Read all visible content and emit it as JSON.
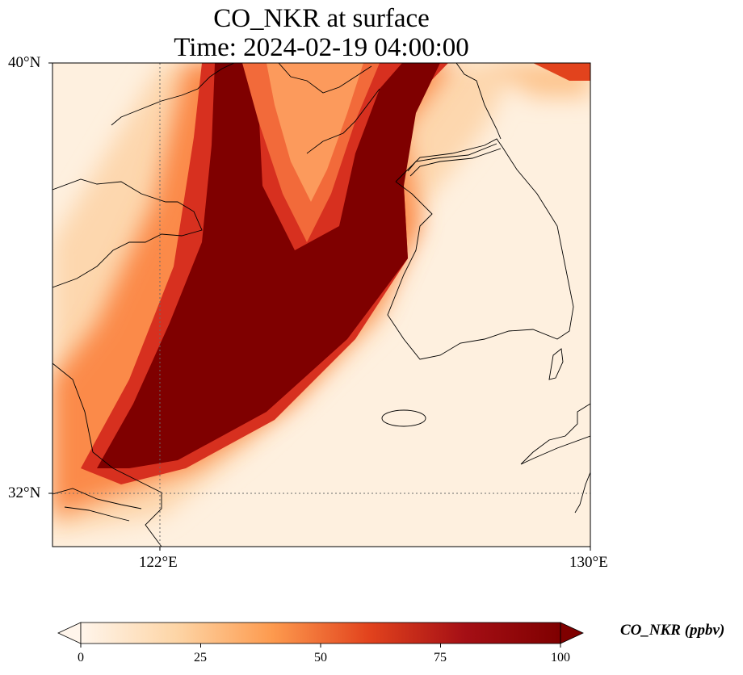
{
  "title": "CO_NKR at surface",
  "subtitle": "Time: 2024-02-19 04:00:00",
  "map": {
    "lon_range": [
      120.4,
      130
    ],
    "lat_range": [
      31.2,
      40
    ],
    "gridlines": "dotted",
    "lat_ticks": [
      "40°N",
      "32°N"
    ],
    "lon_ticks": [
      "122°E",
      "130°E"
    ],
    "field_description": "CO_NKR plume extending from southwest (near 121°E, 32.5°N) northeast across the Yellow Sea toward the Liaodong peninsula and northern Korea, with a secondary branch toward Bohai; high values (≥100 ppbv) in plume core",
    "colormap": [
      "#fff5eb",
      "#fdd5a6",
      "#fd9a4e",
      "#e2431d",
      "#a50f15",
      "#7f0000"
    ]
  },
  "colorbar": {
    "label": "CO_NKR (ppbv)",
    "min": 0,
    "max": 100,
    "ticks": [
      "0",
      "25",
      "50",
      "75",
      "100"
    ],
    "extend": "both"
  }
}
